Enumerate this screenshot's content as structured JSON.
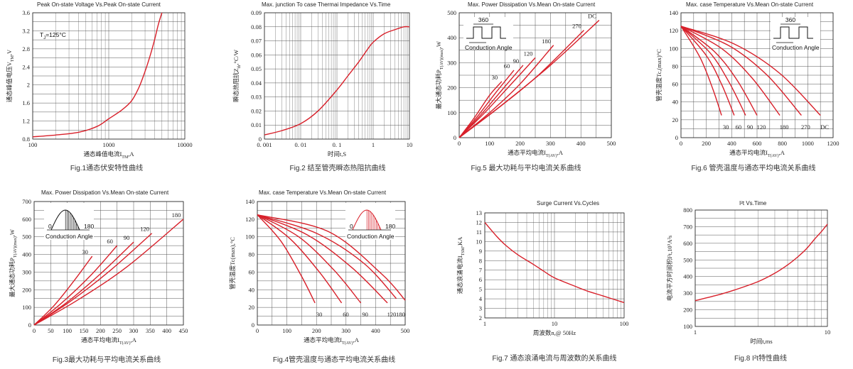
{
  "chart_data": [
    {
      "id": "fig1",
      "type": "line",
      "title": "Peak On-state Voltage Vs.Peak On-state Current",
      "xlabel": "通态峰值电流I_TM,A",
      "ylabel": "通态峰值电压V_TM,V",
      "xscale": "log",
      "xlim": [
        100,
        10000
      ],
      "ylim": [
        0.8,
        3.6
      ],
      "xticks": [
        "100",
        "1000",
        "10000"
      ],
      "yticks": [
        "0.8",
        "1.2",
        "1.6",
        "2",
        "2.4",
        "2.8",
        "3.2",
        "3.6"
      ],
      "annotation": "T_J=125°C",
      "caption": "Fig.1通态伏安特性曲线",
      "series": [
        {
          "x": [
            100,
            200,
            400,
            700,
            1000,
            1500,
            2000,
            2500,
            3000,
            3500,
            4000,
            4500,
            5000
          ],
          "y": [
            0.85,
            0.89,
            0.95,
            1.08,
            1.25,
            1.45,
            1.65,
            1.95,
            2.3,
            2.65,
            3.0,
            3.35,
            3.6
          ]
        }
      ]
    },
    {
      "id": "fig2",
      "type": "line",
      "title": "Max. junction To case Thermai Impedance Vs.Time",
      "xlabel": "时间t,S",
      "ylabel": "瞬态热阻抗Z_th,°C/W",
      "xscale": "log",
      "xlim": [
        0.001,
        10
      ],
      "ylim": [
        0,
        0.09
      ],
      "xticks": [
        "0. 001",
        "0. 01",
        "0. 1",
        "1",
        "10"
      ],
      "yticks": [
        "0",
        "0.01",
        "0.02",
        "0.03",
        "0.04",
        "0.05",
        "0.06",
        "0.07",
        "0.08",
        "0.09"
      ],
      "caption": "Fig.2 结至管壳瞬态热阻抗曲线",
      "series": [
        {
          "x": [
            0.001,
            0.003,
            0.01,
            0.03,
            0.1,
            0.2,
            0.4,
            0.7,
            1,
            2,
            4,
            7,
            10
          ],
          "y": [
            0.003,
            0.006,
            0.011,
            0.02,
            0.035,
            0.045,
            0.055,
            0.064,
            0.069,
            0.075,
            0.078,
            0.08,
            0.08
          ]
        }
      ]
    },
    {
      "id": "fig5",
      "type": "line",
      "title": "Max. Power Dissipation Vs.Mean On-state Current",
      "xlabel": "通态平均电流I_T(AV),A",
      "ylabel": "最大通态功耗P_T(AV)(max),W",
      "xlim": [
        0,
        500
      ],
      "ylim": [
        0,
        500
      ],
      "xticks": [
        "0",
        "100",
        "200",
        "300",
        "400",
        "500"
      ],
      "yticks": [
        "0",
        "100",
        "200",
        "300",
        "400",
        "500"
      ],
      "annotation": "Conduction Angle",
      "inset_label": "360",
      "caption": "Fig.5 最大功耗与平均电流关系曲线",
      "series": [
        {
          "name": "30",
          "x": [
            0,
            50,
            100,
            140
          ],
          "y": [
            0,
            80,
            170,
            225
          ]
        },
        {
          "name": "60",
          "x": [
            0,
            60,
            120,
            180
          ],
          "y": [
            0,
            85,
            180,
            270
          ]
        },
        {
          "name": "90",
          "x": [
            0,
            70,
            140,
            210
          ],
          "y": [
            0,
            90,
            190,
            290
          ]
        },
        {
          "name": "120",
          "x": [
            0,
            80,
            160,
            250
          ],
          "y": [
            0,
            95,
            200,
            320
          ]
        },
        {
          "name": "180",
          "x": [
            0,
            100,
            200,
            310
          ],
          "y": [
            0,
            100,
            215,
            370
          ]
        },
        {
          "name": "270",
          "x": [
            0,
            130,
            260,
            410
          ],
          "y": [
            0,
            120,
            250,
            430
          ]
        },
        {
          "name": "DC",
          "x": [
            0,
            150,
            300,
            460
          ],
          "y": [
            0,
            140,
            290,
            470
          ]
        }
      ]
    },
    {
      "id": "fig6",
      "type": "line",
      "title": "Max. case Temperature Vs.Mean On-state Current",
      "xlabel": "通态平均电流I_T(AV),A",
      "ylabel": "管壳温度Tc,(max)°C",
      "xlim": [
        0,
        1200
      ],
      "ylim": [
        0,
        140
      ],
      "xticks": [
        "0",
        "200",
        "400",
        "600",
        "800",
        "1000",
        "1200"
      ],
      "yticks": [
        "0",
        "20",
        "40",
        "60",
        "80",
        "100",
        "120",
        "140"
      ],
      "annotation": "Conduction Angle",
      "inset_label": "360",
      "caption": "Fig.6 管壳温度与通态平均电流关系曲线",
      "series": [
        {
          "name": "30",
          "x": [
            0,
            150,
            250,
            320
          ],
          "y": [
            125,
            90,
            55,
            25
          ]
        },
        {
          "name": "60",
          "x": [
            0,
            200,
            320,
            420
          ],
          "y": [
            125,
            92,
            60,
            25
          ]
        },
        {
          "name": "90",
          "x": [
            0,
            230,
            380,
            510
          ],
          "y": [
            125,
            95,
            62,
            25
          ]
        },
        {
          "name": "120",
          "x": [
            0,
            260,
            440,
            600
          ],
          "y": [
            125,
            97,
            65,
            25
          ]
        },
        {
          "name": "180",
          "x": [
            0,
            320,
            560,
            780
          ],
          "y": [
            125,
            100,
            67,
            25
          ]
        },
        {
          "name": "270",
          "x": [
            0,
            380,
            680,
            950
          ],
          "y": [
            125,
            103,
            70,
            25
          ]
        },
        {
          "name": "DC",
          "x": [
            0,
            420,
            780,
            1100
          ],
          "y": [
            125,
            105,
            72,
            25
          ]
        }
      ]
    },
    {
      "id": "fig3",
      "type": "line",
      "title": "Max. Power Dissipation Vs.Mean On-state Current",
      "xlabel": "通态平均电流I_T(AV),A",
      "ylabel": "最大通态功耗P_T(AV)(max),W",
      "xlim": [
        0,
        450
      ],
      "ylim": [
        0,
        700
      ],
      "xticks": [
        "0",
        "50",
        "100",
        "150",
        "200",
        "250",
        "300",
        "350",
        "400",
        "450"
      ],
      "yticks": [
        "0",
        "100",
        "200",
        "300",
        "400",
        "500",
        "600",
        "700"
      ],
      "annotation": "Conduction Angle",
      "inset_labels": [
        "0",
        "180"
      ],
      "caption": "Fig.3最大功耗与平均电流关系曲线",
      "series": [
        {
          "name": "30",
          "x": [
            0,
            60,
            120,
            175
          ],
          "y": [
            0,
            110,
            250,
            390
          ]
        },
        {
          "name": "60",
          "x": [
            0,
            80,
            170,
            250
          ],
          "y": [
            0,
            120,
            280,
            450
          ]
        },
        {
          "name": "90",
          "x": [
            0,
            100,
            200,
            300
          ],
          "y": [
            0,
            130,
            290,
            470
          ]
        },
        {
          "name": "120",
          "x": [
            0,
            110,
            230,
            355
          ],
          "y": [
            0,
            135,
            310,
            520
          ]
        },
        {
          "name": "180",
          "x": [
            0,
            130,
            280,
            450
          ],
          "y": [
            0,
            140,
            330,
            600
          ]
        }
      ]
    },
    {
      "id": "fig4",
      "type": "line",
      "title": "Max. case Temperature Vs.Mean On-state Current",
      "xlabel": "通态平均电流I_T(AV),A",
      "ylabel": "管壳温度Tc(max),°C",
      "xlim": [
        0,
        500
      ],
      "ylim": [
        0,
        140
      ],
      "xticks": [
        "0",
        "100",
        "200",
        "300",
        "400",
        "500"
      ],
      "yticks": [
        "0",
        "20",
        "40",
        "60",
        "80",
        "100",
        "120",
        "140"
      ],
      "annotation": "Conduction Angle",
      "inset_labels": [
        "0",
        "180"
      ],
      "caption": "Fig.4管壳温度与通态平均电流关系曲线",
      "series": [
        {
          "name": "30",
          "x": [
            0,
            80,
            150,
            195
          ],
          "y": [
            125,
            95,
            55,
            25
          ]
        },
        {
          "name": "60",
          "x": [
            0,
            110,
            210,
            285
          ],
          "y": [
            125,
            98,
            60,
            25
          ]
        },
        {
          "name": "90",
          "x": [
            0,
            140,
            260,
            350
          ],
          "y": [
            125,
            100,
            62,
            25
          ]
        },
        {
          "name": "120",
          "x": [
            0,
            170,
            320,
            440
          ],
          "y": [
            125,
            102,
            65,
            25
          ]
        },
        {
          "name": "180",
          "x": [
            0,
            200,
            360,
            470
          ],
          "y": [
            125,
            104,
            70,
            30
          ]
        },
        {
          "name": "",
          "x": [
            0,
            240,
            420,
            500
          ],
          "y": [
            125,
            106,
            58,
            28
          ]
        }
      ]
    },
    {
      "id": "fig7",
      "type": "line",
      "title": "Surge Current Vs.Cycles",
      "xlabel": "周波数n,@ 50Hz",
      "ylabel": "通态浪涌电流I_TSM,KA",
      "xscale": "log",
      "xlim": [
        1,
        100
      ],
      "ylim": [
        2,
        13
      ],
      "xticks": [
        "1",
        "10",
        "100"
      ],
      "yticks": [
        "2",
        "3",
        "4",
        "5",
        "6",
        "7",
        "8",
        "9",
        "10",
        "11",
        "12",
        "13"
      ],
      "caption": "Fig.7 通态浪涌电流与周波数的关系曲线",
      "series": [
        {
          "x": [
            1,
            1.5,
            2,
            3,
            5,
            7,
            10,
            20,
            30,
            50,
            100
          ],
          "y": [
            12,
            10.5,
            9.6,
            8.6,
            7.6,
            6.9,
            6.2,
            5.3,
            4.8,
            4.3,
            3.6
          ]
        }
      ]
    },
    {
      "id": "fig8",
      "type": "line",
      "title": "I²t  Vs.Time",
      "xlabel": "时间t,ms",
      "ylabel": "电流平方时间积I²t,10³A²s",
      "xscale": "log",
      "xlim": [
        1,
        10
      ],
      "ylim": [
        100,
        800
      ],
      "xticks": [
        "1",
        "10"
      ],
      "yticks": [
        "100",
        "200",
        "300",
        "400",
        "500",
        "600",
        "700",
        "800"
      ],
      "caption": "Fig.8 I²t特性曲线",
      "series": [
        {
          "x": [
            1,
            1.5,
            2,
            3,
            4,
            5,
            6,
            7,
            8,
            9,
            10
          ],
          "y": [
            255,
            290,
            320,
            370,
            420,
            470,
            520,
            570,
            625,
            670,
            715
          ]
        }
      ]
    }
  ]
}
